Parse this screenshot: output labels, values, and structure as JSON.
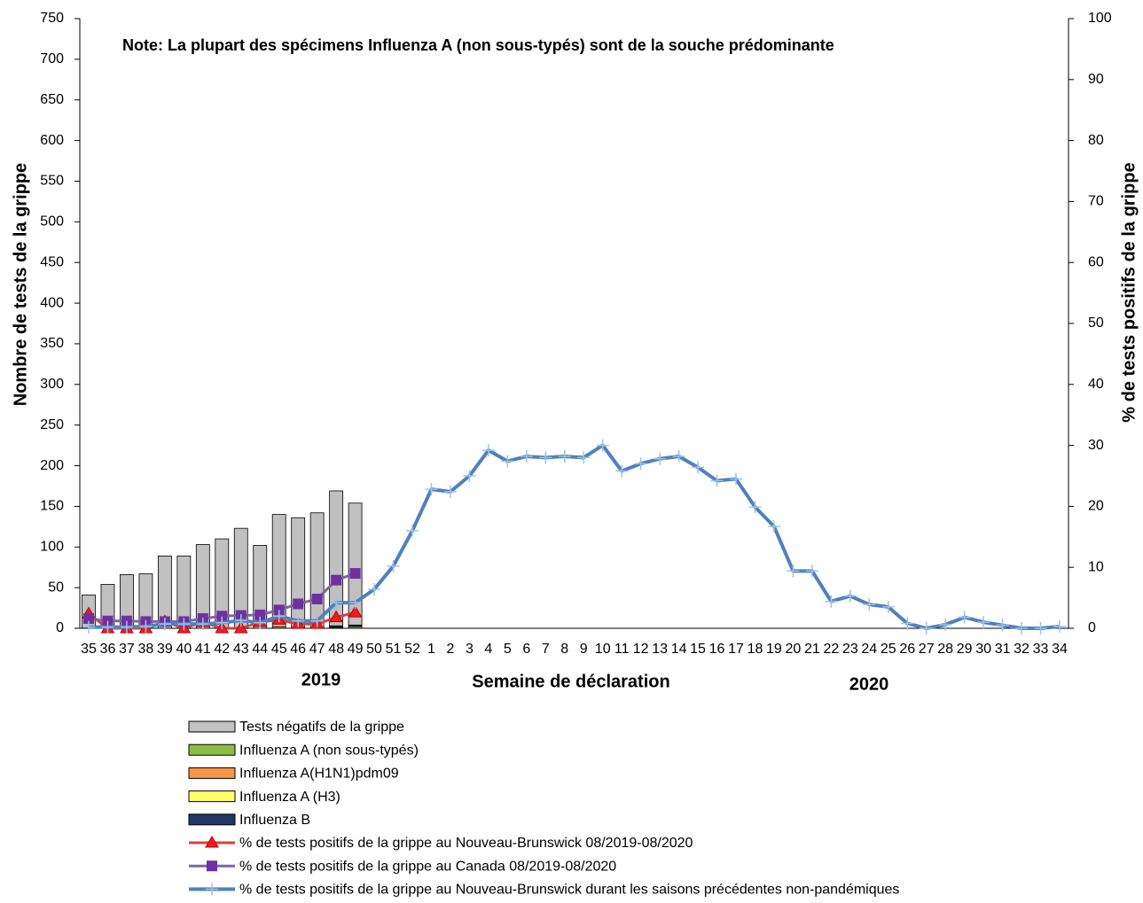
{
  "chart_data": {
    "type": "bar",
    "note": "Note: La plupart des spécimens Influenza A (non sous-typés) sont de la souche prédominante",
    "ylabel": "Nombre de tests de la grippe",
    "y2label": "% de tests positifs de la grippe",
    "xlabel": "Semaine de déclaration",
    "year_labels": [
      "2019",
      "2020"
    ],
    "categories": [
      "35",
      "36",
      "37",
      "38",
      "39",
      "40",
      "41",
      "42",
      "43",
      "44",
      "45",
      "46",
      "47",
      "48",
      "49",
      "50",
      "51",
      "52",
      "1",
      "2",
      "3",
      "4",
      "5",
      "6",
      "7",
      "8",
      "9",
      "10",
      "11",
      "12",
      "13",
      "14",
      "15",
      "16",
      "17",
      "18",
      "19",
      "20",
      "21",
      "22",
      "23",
      "24",
      "25",
      "26",
      "27",
      "28",
      "29",
      "30",
      "31",
      "32",
      "33",
      "34"
    ],
    "ylim": [
      0,
      750
    ],
    "yticks": [
      0,
      50,
      100,
      150,
      200,
      250,
      300,
      350,
      400,
      450,
      500,
      550,
      600,
      650,
      700,
      750
    ],
    "y2lim": [
      0,
      100
    ],
    "y2ticks": [
      0,
      10,
      20,
      30,
      40,
      50,
      60,
      70,
      80,
      90,
      100
    ],
    "series": [
      {
        "name": "Tests négatifs de la grippe",
        "type": "bar",
        "color": "#c0c0c0",
        "values": [
          40,
          54,
          66,
          67,
          89,
          89,
          103,
          110,
          123,
          102,
          138,
          136,
          142,
          166,
          150,
          null,
          null,
          null,
          null,
          null,
          null,
          null,
          null,
          null,
          null,
          null,
          null,
          null,
          null,
          null,
          null,
          null,
          null,
          null,
          null,
          null,
          null,
          null,
          null,
          null,
          null,
          null,
          null,
          null,
          null,
          null,
          null,
          null,
          null,
          null,
          null,
          null
        ]
      },
      {
        "name": "Influenza A (non sous-typés)",
        "type": "bar",
        "color": "#8fbc45",
        "values": [
          1,
          0,
          0,
          0,
          0,
          0,
          0,
          0,
          0,
          0,
          2,
          0,
          0,
          1,
          2,
          null,
          null,
          null,
          null,
          null,
          null,
          null,
          null,
          null,
          null,
          null,
          null,
          null,
          null,
          null,
          null,
          null,
          null,
          null,
          null,
          null,
          null,
          null,
          null,
          null,
          null,
          null,
          null,
          null,
          null,
          null,
          null,
          null,
          null,
          null,
          null,
          null
        ]
      },
      {
        "name": "Influenza A(H1N1)pdm09",
        "type": "bar",
        "color": "#f79646",
        "values": [
          0,
          0,
          0,
          0,
          0,
          0,
          0,
          0,
          0,
          0,
          0,
          0,
          0,
          0,
          0,
          null,
          null,
          null,
          null,
          null,
          null,
          null,
          null,
          null,
          null,
          null,
          null,
          null,
          null,
          null,
          null,
          null,
          null,
          null,
          null,
          null,
          null,
          null,
          null,
          null,
          null,
          null,
          null,
          null,
          null,
          null,
          null,
          null,
          null,
          null,
          null,
          null
        ]
      },
      {
        "name": "Influenza A (H3)",
        "type": "bar",
        "color": "#ffff66",
        "values": [
          0,
          0,
          0,
          0,
          0,
          0,
          0,
          0,
          0,
          0,
          0,
          0,
          0,
          0,
          0,
          null,
          null,
          null,
          null,
          null,
          null,
          null,
          null,
          null,
          null,
          null,
          null,
          null,
          null,
          null,
          null,
          null,
          null,
          null,
          null,
          null,
          null,
          null,
          null,
          null,
          null,
          null,
          null,
          null,
          null,
          null,
          null,
          null,
          null,
          null,
          null,
          null
        ]
      },
      {
        "name": "Influenza B",
        "type": "bar",
        "color": "#1f3864",
        "values": [
          0,
          0,
          0,
          0,
          0,
          0,
          0,
          0,
          0,
          0,
          0,
          0,
          0,
          2,
          2,
          null,
          null,
          null,
          null,
          null,
          null,
          null,
          null,
          null,
          null,
          null,
          null,
          null,
          null,
          null,
          null,
          null,
          null,
          null,
          null,
          null,
          null,
          null,
          null,
          null,
          null,
          null,
          null,
          null,
          null,
          null,
          null,
          null,
          null,
          null,
          null,
          null
        ]
      },
      {
        "name": "% de tests positifs de la grippe  au Nouveau-Brunswick 08/2019-08/2020",
        "type": "line",
        "axis": "y2",
        "color": "#d9403a",
        "marker": "triangle",
        "marker_color": "#ee1c24",
        "values": [
          2.4,
          0,
          0,
          0,
          1.1,
          0,
          1,
          0,
          0,
          1,
          1.4,
          0.7,
          0.7,
          1.8,
          2.6,
          null,
          null,
          null,
          null,
          null,
          null,
          null,
          null,
          null,
          null,
          null,
          null,
          null,
          null,
          null,
          null,
          null,
          null,
          null,
          null,
          null,
          null,
          null,
          null,
          null,
          null,
          null,
          null,
          null,
          null,
          null,
          null,
          null,
          null,
          null,
          null,
          null
        ]
      },
      {
        "name": "% de tests positifs de la grippe  au Canada 08/2019-08/2020",
        "type": "line",
        "axis": "y2",
        "color": "#8064a2",
        "marker": "square",
        "marker_color": "#7030a0",
        "values": [
          1.6,
          1.2,
          1.2,
          1.1,
          1.1,
          1.1,
          1.6,
          2,
          2.1,
          2.2,
          3,
          4,
          4.8,
          7.9,
          9,
          null,
          null,
          null,
          null,
          null,
          null,
          null,
          null,
          null,
          null,
          null,
          null,
          null,
          null,
          null,
          null,
          null,
          null,
          null,
          null,
          null,
          null,
          null,
          null,
          null,
          null,
          null,
          null,
          null,
          null,
          null,
          null,
          null,
          null,
          null,
          null,
          null
        ]
      },
      {
        "name": "% de tests positifs de la grippe  au Nouveau-Brunswick durant les saisons précédentes non-pandémiques",
        "type": "line",
        "axis": "y2",
        "color": "#4f81bd",
        "marker": "plus",
        "marker_color": "#9dc3e6",
        "values": [
          0.2,
          0.2,
          0.2,
          0.3,
          0.7,
          0.7,
          0.7,
          0.9,
          1.3,
          0.9,
          2,
          1.2,
          1.2,
          4.2,
          4.2,
          6.4,
          10.2,
          16,
          22.8,
          22.4,
          25,
          29.2,
          27.4,
          28.2,
          28,
          28.2,
          28,
          30,
          25.8,
          27,
          27.8,
          28.2,
          26.4,
          24.2,
          24.5,
          19.9,
          16.7,
          9.4,
          9.4,
          4.4,
          5.3,
          3.9,
          3.5,
          0.8,
          0,
          0.6,
          1.8,
          1,
          0.5,
          0,
          0,
          0.3
        ]
      }
    ]
  }
}
